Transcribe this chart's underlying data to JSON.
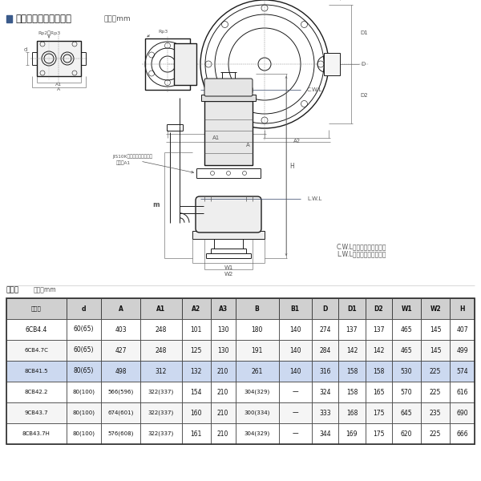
{
  "title_prefix": "■",
  "title_main": "外形据付寸法図（例）",
  "title_unit": "単位：mm",
  "table_title": "寸法表",
  "table_unit": "単位：mm",
  "headers": [
    "型　式",
    "d",
    "A",
    "A1",
    "A2",
    "A3",
    "B",
    "B1",
    "D",
    "D1",
    "D2",
    "W1",
    "W2",
    "H"
  ],
  "rows": [
    [
      "6CB4.4",
      "60(65)",
      "403",
      "248",
      "101",
      "130",
      "180",
      "140",
      "274",
      "137",
      "137",
      "465",
      "145",
      "407"
    ],
    [
      "6CB4.7C",
      "60(65)",
      "427",
      "248",
      "125",
      "130",
      "191",
      "140",
      "284",
      "142",
      "142",
      "465",
      "145",
      "499"
    ],
    [
      "8CB41.5",
      "80(65)",
      "498",
      "312",
      "132",
      "210",
      "261",
      "140",
      "316",
      "158",
      "158",
      "530",
      "225",
      "574"
    ],
    [
      "8CB42.2",
      "80(100)",
      "566(596)",
      "322(337)",
      "154",
      "210",
      "304(329)",
      "—",
      "324",
      "158",
      "165",
      "570",
      "225",
      "616"
    ],
    [
      "9CB43.7",
      "80(100)",
      "674(601)",
      "322(337)",
      "160",
      "210",
      "300(334)",
      "—",
      "333",
      "168",
      "175",
      "645",
      "235",
      "690"
    ],
    [
      "8CB43.7H",
      "80(100)",
      "576(608)",
      "322(337)",
      "161",
      "210",
      "304(329)",
      "—",
      "344",
      "169",
      "175",
      "620",
      "225",
      "666"
    ]
  ],
  "highlight_row": 2,
  "bg_color": "#ffffff",
  "header_bg": "#d0d0d0",
  "highlight_bg": "#ccd9f0",
  "border_color": "#333333",
  "text_color": "#111111",
  "title_square_color": "#3a5a8a",
  "note1": "C.W.L：連続運転最低水位",
  "note2": "L.W.L：運転可能最低水位",
  "rp2_rp3": "Rp2・Rp3",
  "rp3": "Rp3",
  "jis_label1": "JIS10Kねじ込み相フランジ",
  "jis_label2": "断面径A1",
  "cwl": "C.W.L",
  "lwl": "L.W.L",
  "W1": "W1",
  "W2": "W2",
  "H_label": "H",
  "m_label": "m"
}
